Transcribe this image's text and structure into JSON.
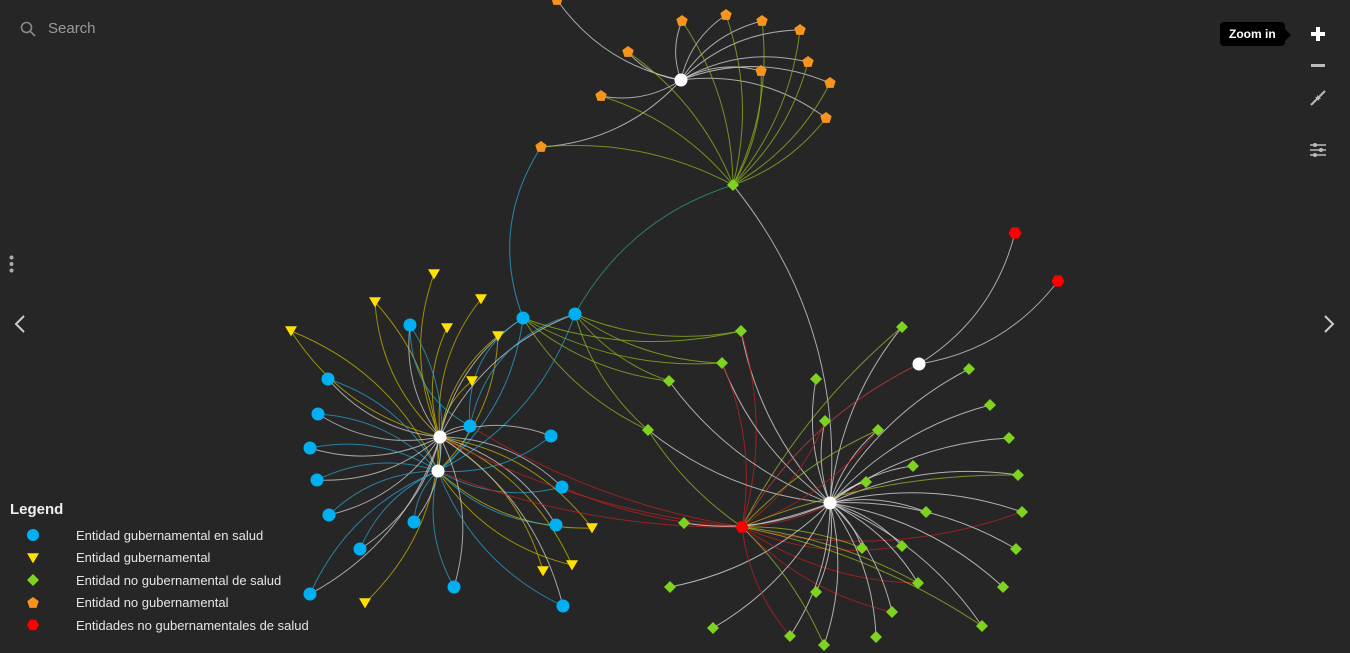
{
  "search": {
    "placeholder": "Search",
    "icon": "search-icon"
  },
  "controls": {
    "tooltip": "Zoom in",
    "items": [
      "zoom-in",
      "zoom-out",
      "fit",
      "settings"
    ]
  },
  "legend": {
    "title": "Legend",
    "items": [
      {
        "label": "Entidad gubernamental en salud",
        "shape": "circle",
        "color": "#00b0f0"
      },
      {
        "label": "Entidad gubernamental",
        "shape": "triangle-down",
        "color": "#ffe000"
      },
      {
        "label": "Entidad no gubernamental de salud",
        "shape": "diamond",
        "color": "#7ed321"
      },
      {
        "label": "Entidad no gubernamental",
        "shape": "pentagon",
        "color": "#f7941d"
      },
      {
        "label": "Entidades no gubernamentales de salud",
        "shape": "hexagon",
        "color": "#ff0000"
      }
    ]
  },
  "colors": {
    "background": "#262626",
    "hub": "#ffffff"
  }
}
